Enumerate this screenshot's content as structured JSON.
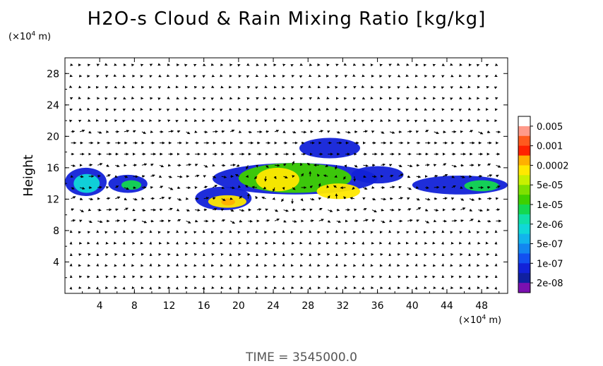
{
  "title": "H2O-s Cloud & Rain Mixing Ratio [kg/kg]",
  "y_unit": {
    "prefix": "(×10",
    "exp": "4",
    "suffix": " m)"
  },
  "x_unit": {
    "prefix": "(×10",
    "exp": "4",
    "suffix": " m)"
  },
  "footer": "TIME = 3545000.0",
  "chart_data": {
    "type": "heatmap",
    "ylabel": "Height",
    "xlabel": "",
    "xlim": [
      0,
      51
    ],
    "ylim": [
      0,
      30
    ],
    "x_ticks": [
      "4",
      "8",
      "12",
      "16",
      "20",
      "24",
      "28",
      "32",
      "36",
      "40",
      "44",
      "48"
    ],
    "y_ticks": [
      "4",
      "8",
      "12",
      "16",
      "20",
      "24",
      "28"
    ],
    "legend": {
      "placement": "right",
      "labels": [
        "0.005",
        "0.001",
        "0.0002",
        "5e-05",
        "1e-05",
        "2e-06",
        "5e-07",
        "1e-07",
        "2e-08"
      ],
      "colors": [
        "#ffffff",
        "#ff9a8a",
        "#ff5a1e",
        "#ff2200",
        "#ffb000",
        "#ffe800",
        "#c8f000",
        "#7ee000",
        "#3ed000",
        "#14d850",
        "#10e0a8",
        "#10d8d8",
        "#12b4ec",
        "#1286f0",
        "#1250f0",
        "#1222d8",
        "#1020a0",
        "#7a10b0"
      ]
    },
    "cloud_regions": [
      {
        "x": 0,
        "y": 12.4,
        "w": 4.8,
        "h": 3.6,
        "level": "1e-07"
      },
      {
        "x": 1,
        "y": 12.8,
        "w": 3.0,
        "h": 2.4,
        "level": "5e-06"
      },
      {
        "x": 5,
        "y": 12.8,
        "w": 4.5,
        "h": 2.3,
        "level": "1e-07"
      },
      {
        "x": 6.5,
        "y": 13.2,
        "w": 2.3,
        "h": 1.2,
        "level": "2e-06"
      },
      {
        "x": 15,
        "y": 10.6,
        "w": 6.5,
        "h": 3.0,
        "level": "1e-07"
      },
      {
        "x": 16.5,
        "y": 10.9,
        "w": 4.4,
        "h": 1.6,
        "level": "5e-05"
      },
      {
        "x": 18,
        "y": 11.2,
        "w": 1.6,
        "h": 0.9,
        "level": "0.0002"
      },
      {
        "x": 17,
        "y": 12.6,
        "w": 19,
        "h": 4.0,
        "level": "1e-07"
      },
      {
        "x": 20,
        "y": 12.8,
        "w": 13,
        "h": 3.8,
        "level": "1e-05"
      },
      {
        "x": 22,
        "y": 13.0,
        "w": 5,
        "h": 3.0,
        "level": "5e-05"
      },
      {
        "x": 29,
        "y": 12.0,
        "w": 5,
        "h": 2.0,
        "level": "5e-05"
      },
      {
        "x": 27,
        "y": 17.2,
        "w": 7,
        "h": 2.6,
        "level": "1e-07"
      },
      {
        "x": 33,
        "y": 14.0,
        "w": 6,
        "h": 2.2,
        "level": "1e-07"
      },
      {
        "x": 40,
        "y": 12.6,
        "w": 11,
        "h": 2.4,
        "level": "1e-07"
      },
      {
        "x": 46,
        "y": 13.0,
        "w": 4,
        "h": 1.4,
        "level": "2e-06"
      }
    ]
  }
}
